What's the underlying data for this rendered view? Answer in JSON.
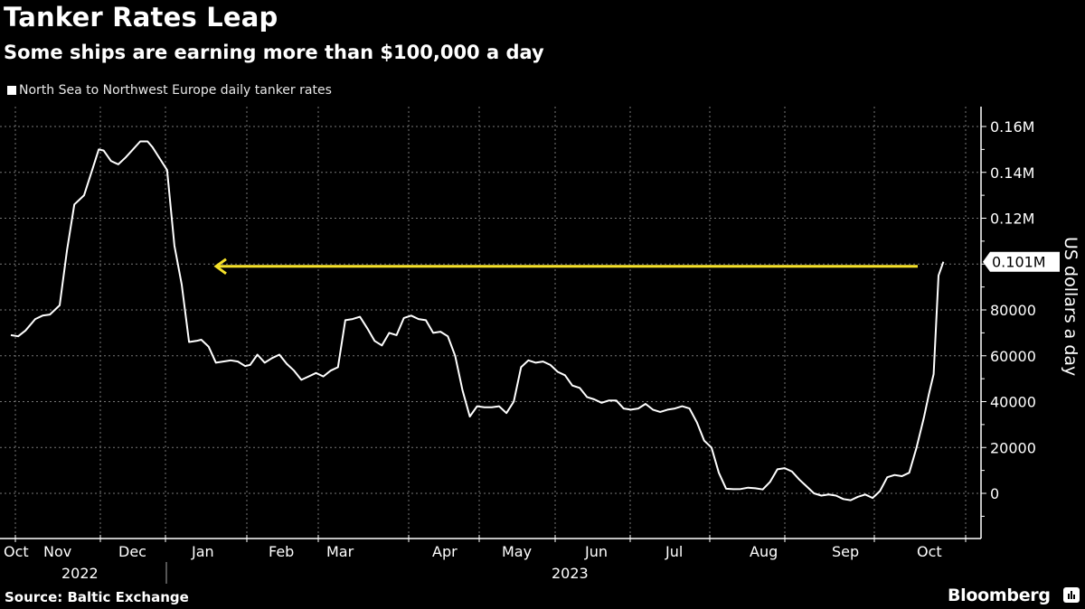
{
  "header": {
    "title": "Tanker Rates Leap",
    "subtitle": "Some ships are earning more than $100,000 a day"
  },
  "legend": {
    "label": "North Sea to Northwest Europe daily tanker rates"
  },
  "footer": {
    "source": "Source: Baltic Exchange",
    "brand": "Bloomberg"
  },
  "colors": {
    "background": "#000000",
    "line": "#ffffff",
    "arrow": "#f5e12a",
    "grid": "#777777"
  },
  "chart_data": {
    "type": "line",
    "title": "Tanker Rates Leap",
    "subtitle": "Some ships are earning more than $100,000 a day",
    "xlabel": "",
    "ylabel": "US dollars a day",
    "ylim": [
      -20000,
      170000
    ],
    "y_ticks": [
      0,
      20000,
      40000,
      60000,
      80000,
      100000,
      120000,
      140000,
      160000
    ],
    "y_tick_labels": [
      "0",
      "20000",
      "40000",
      "60000",
      "80000",
      "0.10M",
      "0.12M",
      "0.14M",
      "0.16M"
    ],
    "y_tick_labels_shown": [
      "0",
      "20000",
      "40000",
      "60000",
      "80000",
      "0.12M",
      "0.14M",
      "0.16M"
    ],
    "x_month_labels": [
      "Oct",
      "Nov",
      "Dec",
      "Jan",
      "Feb",
      "Mar",
      "Apr",
      "May",
      "Jun",
      "Jul",
      "Aug",
      "Sep",
      "Oct"
    ],
    "x_year_labels": [
      "2022",
      "2023"
    ],
    "last_value_label": "0.101M",
    "last_value": 101000,
    "grid": true,
    "legend_position": "top-left",
    "annotation": {
      "type": "arrow",
      "direction": "left",
      "value": 99000,
      "color": "#f5e12a"
    },
    "series": [
      {
        "name": "North Sea to Northwest Europe daily tanker rates",
        "x_days_from_oct1_2022": [
          0,
          3,
          6,
          10,
          13,
          16,
          20,
          23,
          26,
          30,
          33,
          36,
          38,
          41,
          44,
          47,
          50,
          53,
          56,
          58,
          61,
          64,
          67,
          70,
          73,
          76,
          78,
          81,
          84,
          87,
          90,
          93,
          96,
          98,
          101,
          104,
          107,
          110,
          113,
          116,
          119,
          122,
          125,
          128,
          131,
          134,
          137,
          140,
          143,
          146,
          149,
          152,
          155,
          158,
          161,
          164,
          167,
          170,
          173,
          176,
          179,
          182,
          185,
          188,
          191,
          194,
          197,
          200,
          203,
          206,
          209,
          212,
          215,
          218,
          221,
          224,
          227,
          230,
          233,
          236,
          239,
          242,
          245,
          248,
          251,
          254,
          257,
          260,
          263,
          266,
          269,
          272,
          275,
          278,
          281,
          284,
          287,
          290,
          293,
          296,
          299,
          302,
          305,
          308,
          311,
          314,
          317,
          320,
          323,
          326,
          329,
          332,
          335,
          338,
          341,
          344,
          347,
          350,
          353,
          356,
          359,
          362,
          365,
          368,
          371,
          374,
          376,
          378,
          380,
          382
        ],
        "values": [
          69000,
          68500,
          71000,
          76000,
          77500,
          78000,
          82000,
          106000,
          126000,
          130000,
          140000,
          150000,
          149500,
          145000,
          143500,
          146500,
          150000,
          153500,
          153500,
          151000,
          146000,
          141000,
          108000,
          91000,
          66000,
          66500,
          67000,
          64000,
          57000,
          57500,
          58000,
          57500,
          55500,
          56000,
          60500,
          57000,
          59000,
          60500,
          56500,
          53500,
          49500,
          51000,
          52500,
          51000,
          53500,
          55000,
          75500,
          76000,
          77000,
          72000,
          66500,
          64500,
          70000,
          69000,
          76500,
          77500,
          76000,
          75500,
          70000,
          70500,
          68500,
          60000,
          45000,
          33500,
          38000,
          37500,
          37500,
          38000,
          35000,
          40000,
          55000,
          58000,
          57000,
          57500,
          56000,
          53000,
          51500,
          47000,
          46000,
          42000,
          41000,
          39500,
          40500,
          40500,
          37000,
          36500,
          37000,
          39000,
          36500,
          35500,
          36500,
          37000,
          38000,
          37000,
          31000,
          23000,
          20000,
          9000,
          2000,
          1800,
          1900,
          2500,
          2200,
          1700,
          5000,
          10500,
          11000,
          9500,
          6000,
          3000,
          0,
          -1000,
          -500,
          -1000,
          -2500,
          -3000,
          -1500,
          -500,
          -2000,
          1000,
          7000,
          8000,
          7500,
          9000,
          20000,
          33000,
          43000,
          52000,
          95000,
          101000
        ]
      }
    ]
  }
}
